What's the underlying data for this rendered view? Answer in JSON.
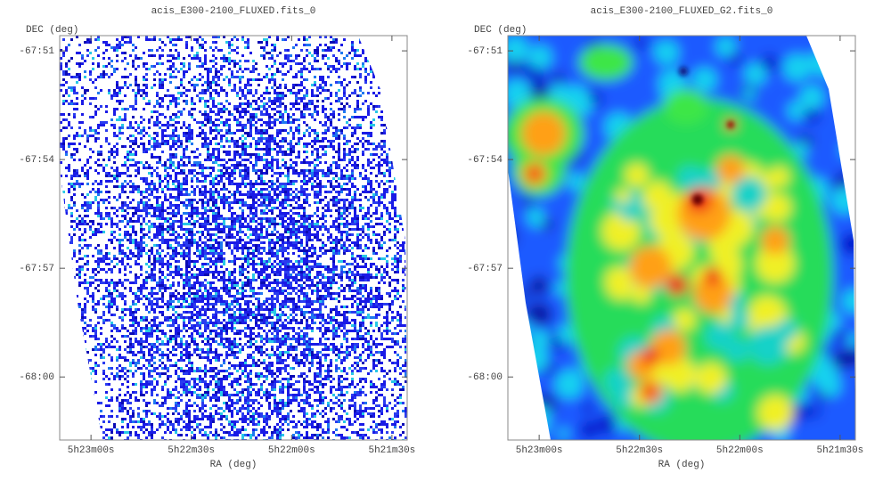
{
  "chart_data": [
    {
      "type": "image",
      "title": "acis_E300-2100_FLUXED.fits_0",
      "xlabel": "RA (deg)",
      "ylabel": "DEC (deg)",
      "xlim": [
        80.789,
        80.356
      ],
      "ylim": [
        -68.029,
        -67.843
      ],
      "xticks": [
        {
          "value": 80.75,
          "label": "5h23m00s"
        },
        {
          "value": 80.625,
          "label": "5h22m30s"
        },
        {
          "value": 80.5,
          "label": "5h22m00s"
        },
        {
          "value": 80.375,
          "label": "5h21m30s"
        }
      ],
      "yticks": [
        {
          "value": -67.85,
          "label": "-67:51"
        },
        {
          "value": -67.9,
          "label": "-67:54"
        },
        {
          "value": -67.95,
          "label": "-67:57"
        },
        {
          "value": -68.0,
          "label": "-68:00"
        }
      ]
    },
    {
      "type": "heatmap",
      "title": "acis_E300-2100_FLUXED_G2.fits_0",
      "xlabel": "RA (deg)",
      "ylabel": "DEC (deg)",
      "xlim": [
        80.789,
        80.356
      ],
      "ylim": [
        -68.029,
        -67.843
      ],
      "xticks": [
        {
          "value": 80.75,
          "label": "5h23m00s"
        },
        {
          "value": 80.625,
          "label": "5h22m30s"
        },
        {
          "value": 80.5,
          "label": "5h22m00s"
        },
        {
          "value": 80.375,
          "label": "5h21m30s"
        }
      ],
      "yticks": [
        {
          "value": -67.85,
          "label": "-67:51"
        },
        {
          "value": -67.9,
          "label": "-67:54"
        },
        {
          "value": -67.95,
          "label": "-67:57"
        },
        {
          "value": -68.0,
          "label": "-68:00"
        }
      ]
    }
  ]
}
